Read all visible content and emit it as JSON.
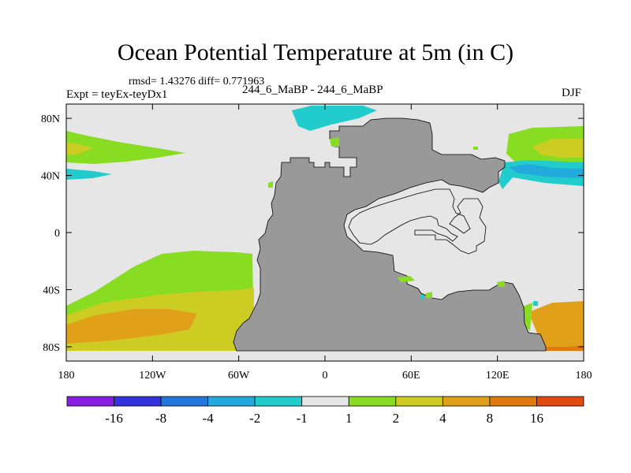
{
  "chart_data": {
    "type": "heatmap",
    "title": "Ocean Potential Temperature at 5m (in C)",
    "stats": "rmsd= 1.43276 diff= 0.771963",
    "left_label": "Expt = teyEx-teyDx1",
    "center_label": "244_6_MaBP - 244_6_MaBP",
    "right_label": "DJF",
    "x_ticks": [
      "180",
      "120W",
      "60W",
      "0",
      "60E",
      "120E",
      "180"
    ],
    "x_tick_values": [
      -180,
      -120,
      -60,
      0,
      60,
      120,
      180
    ],
    "y_ticks": [
      "80N",
      "40N",
      "0",
      "40S",
      "80S"
    ],
    "y_tick_values": [
      80,
      40,
      0,
      -40,
      -80
    ],
    "xlim": [
      -180,
      180
    ],
    "ylim": [
      -90,
      90
    ],
    "land_color": "#999999",
    "zero_band_color": "#e6e6e6",
    "colorbar": {
      "colors": [
        "#8a1ee0",
        "#3333dd",
        "#2277dd",
        "#22aadd",
        "#22cccc",
        "#e6e6e6",
        "#88dd22",
        "#cccc22",
        "#e0a01a",
        "#e07a10",
        "#e04a10"
      ],
      "labels": [
        "-16",
        "-8",
        "-4",
        "-2",
        "-1",
        "1",
        "2",
        "4",
        "8",
        "16"
      ]
    },
    "regions": [
      {
        "name": "north-pacific-west-warm-2",
        "band": "1-2",
        "color": "#88dd22"
      },
      {
        "name": "north-pacific-west-warm-4",
        "band": "2-4",
        "color": "#cccc22"
      },
      {
        "name": "north-pacific-west-cold",
        "band": "-2--1",
        "color": "#22cccc"
      },
      {
        "name": "arctic-cold",
        "band": "-2--1",
        "color": "#22cccc"
      },
      {
        "name": "east-tethys-warm-2",
        "band": "1-2",
        "color": "#88dd22"
      },
      {
        "name": "east-tethys-warm-4",
        "band": "2-4",
        "color": "#cccc22"
      },
      {
        "name": "east-tethys-cold",
        "band": "-2--1",
        "color": "#22cccc"
      },
      {
        "name": "east-tethys-colder",
        "band": "-4--2",
        "color": "#22aadd"
      },
      {
        "name": "southern-ocean-warm-2",
        "band": "1-2",
        "color": "#88dd22"
      },
      {
        "name": "southern-ocean-warm-4",
        "band": "2-4",
        "color": "#cccc22"
      },
      {
        "name": "southern-ocean-warm-8",
        "band": "4-8",
        "color": "#e0a01a"
      },
      {
        "name": "southeast-warm-8",
        "band": "4-8",
        "color": "#e0a01a"
      },
      {
        "name": "southeast-warm-16",
        "band": "8-16",
        "color": "#e07a10"
      }
    ]
  }
}
